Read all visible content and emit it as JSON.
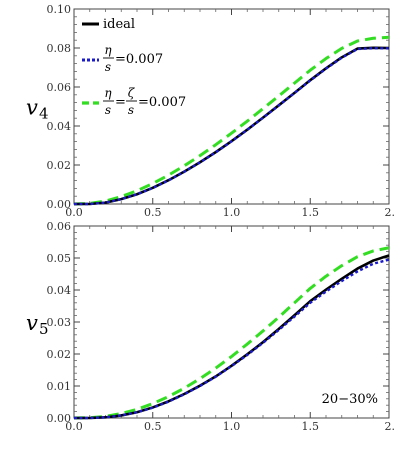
{
  "chart_data": [
    {
      "type": "line",
      "ylabel_main": "v",
      "ylabel_sub": "4",
      "xlim": [
        0.0,
        2.0
      ],
      "ylim": [
        0.0,
        0.1
      ],
      "xticks": [
        "0.0",
        "0.5",
        "1.0",
        "1.5",
        "2."
      ],
      "yticks": [
        "0.00",
        "0.02",
        "0.04",
        "0.06",
        "0.08",
        "0.10"
      ],
      "legend": {
        "placement": "top-left",
        "entries": [
          {
            "label": "ideal",
            "series": 0
          },
          {
            "label_num": "η",
            "label_den": "s",
            "label_eq": "=0.007",
            "series": 1
          },
          {
            "label_num1": "η",
            "label_den1": "s",
            "label_mid": "=",
            "label_num2": "ζ",
            "label_den2": "s",
            "label_eq": "=0.007",
            "series": 2
          }
        ]
      },
      "series": [
        {
          "name": "ideal",
          "color": "#000000",
          "style": "solid",
          "x": [
            0.0,
            0.1,
            0.2,
            0.3,
            0.4,
            0.5,
            0.6,
            0.7,
            0.8,
            0.9,
            1.0,
            1.1,
            1.2,
            1.3,
            1.4,
            1.5,
            1.6,
            1.7,
            1.8,
            1.9,
            2.0
          ],
          "y": [
            0.0,
            0.0,
            0.0007,
            0.0025,
            0.005,
            0.0083,
            0.0122,
            0.0166,
            0.0214,
            0.0266,
            0.0322,
            0.0381,
            0.0443,
            0.0506,
            0.057,
            0.0635,
            0.0696,
            0.0752,
            0.0797,
            0.0801,
            0.08
          ]
        },
        {
          "name": "η/s=0.007",
          "color": "#1a1acc",
          "style": "dotted",
          "x": [
            0.0,
            0.1,
            0.2,
            0.3,
            0.4,
            0.5,
            0.6,
            0.7,
            0.8,
            0.9,
            1.0,
            1.1,
            1.2,
            1.3,
            1.4,
            1.5,
            1.6,
            1.7,
            1.8,
            1.9,
            2.0
          ],
          "y": [
            0.0,
            0.0,
            0.0007,
            0.0025,
            0.005,
            0.0082,
            0.0121,
            0.0165,
            0.0213,
            0.0265,
            0.0321,
            0.038,
            0.0442,
            0.0505,
            0.0569,
            0.0633,
            0.0694,
            0.075,
            0.0795,
            0.0799,
            0.0798
          ]
        },
        {
          "name": "η/s=ζ/s=0.007",
          "color": "#33dd22",
          "style": "dashed",
          "x": [
            0.0,
            0.1,
            0.2,
            0.3,
            0.4,
            0.5,
            0.6,
            0.7,
            0.8,
            0.9,
            1.0,
            1.1,
            1.2,
            1.3,
            1.4,
            1.5,
            1.6,
            1.7,
            1.8,
            1.9,
            2.0
          ],
          "y": [
            0.0,
            0.0003,
            0.0015,
            0.0038,
            0.0068,
            0.0105,
            0.0148,
            0.0196,
            0.0248,
            0.0304,
            0.0363,
            0.0425,
            0.0489,
            0.0554,
            0.062,
            0.0686,
            0.0746,
            0.0798,
            0.0836,
            0.085,
            0.0855
          ]
        }
      ]
    },
    {
      "type": "line",
      "ylabel_main": "v",
      "ylabel_sub": "5",
      "xlim": [
        0.0,
        2.0
      ],
      "ylim": [
        0.0,
        0.06
      ],
      "xticks": [
        "0.0",
        "0.5",
        "1.0",
        "1.5",
        "2."
      ],
      "yticks": [
        "0.00",
        "0.01",
        "0.02",
        "0.03",
        "0.04",
        "0.05",
        "0.06"
      ],
      "annotation": "20−30%",
      "series": [
        {
          "name": "ideal",
          "color": "#000000",
          "style": "solid",
          "x": [
            0.0,
            0.1,
            0.2,
            0.3,
            0.4,
            0.5,
            0.6,
            0.7,
            0.8,
            0.9,
            1.0,
            1.1,
            1.2,
            1.3,
            1.4,
            1.5,
            1.6,
            1.7,
            1.8,
            1.9,
            2.0
          ],
          "y": [
            0.0,
            0.0,
            0.0002,
            0.0008,
            0.0018,
            0.0033,
            0.0052,
            0.0075,
            0.0101,
            0.013,
            0.0163,
            0.0199,
            0.0237,
            0.0278,
            0.0321,
            0.0365,
            0.0401,
            0.0435,
            0.0467,
            0.0492,
            0.0508
          ]
        },
        {
          "name": "η/s=0.007",
          "color": "#1a1acc",
          "style": "dotted",
          "x": [
            0.0,
            0.1,
            0.2,
            0.3,
            0.4,
            0.5,
            0.6,
            0.7,
            0.8,
            0.9,
            1.0,
            1.1,
            1.2,
            1.3,
            1.4,
            1.5,
            1.6,
            1.7,
            1.8,
            1.9,
            2.0
          ],
          "y": [
            0.0,
            0.0,
            0.0002,
            0.0008,
            0.0018,
            0.0032,
            0.0051,
            0.0074,
            0.01,
            0.0129,
            0.0162,
            0.0197,
            0.0235,
            0.0275,
            0.0317,
            0.036,
            0.0395,
            0.0428,
            0.0458,
            0.0482,
            0.0495
          ]
        },
        {
          "name": "η/s=ζ/s=0.007",
          "color": "#33dd22",
          "style": "dashed",
          "x": [
            0.0,
            0.1,
            0.2,
            0.3,
            0.4,
            0.5,
            0.6,
            0.7,
            0.8,
            0.9,
            1.0,
            1.1,
            1.2,
            1.3,
            1.4,
            1.5,
            1.6,
            1.7,
            1.8,
            1.9,
            2.0
          ],
          "y": [
            0.0,
            0.0001,
            0.0005,
            0.0014,
            0.0027,
            0.0045,
            0.0067,
            0.0093,
            0.0123,
            0.0156,
            0.0192,
            0.0231,
            0.0272,
            0.0315,
            0.036,
            0.0405,
            0.0443,
            0.0476,
            0.0504,
            0.0522,
            0.0532
          ]
        }
      ]
    }
  ]
}
